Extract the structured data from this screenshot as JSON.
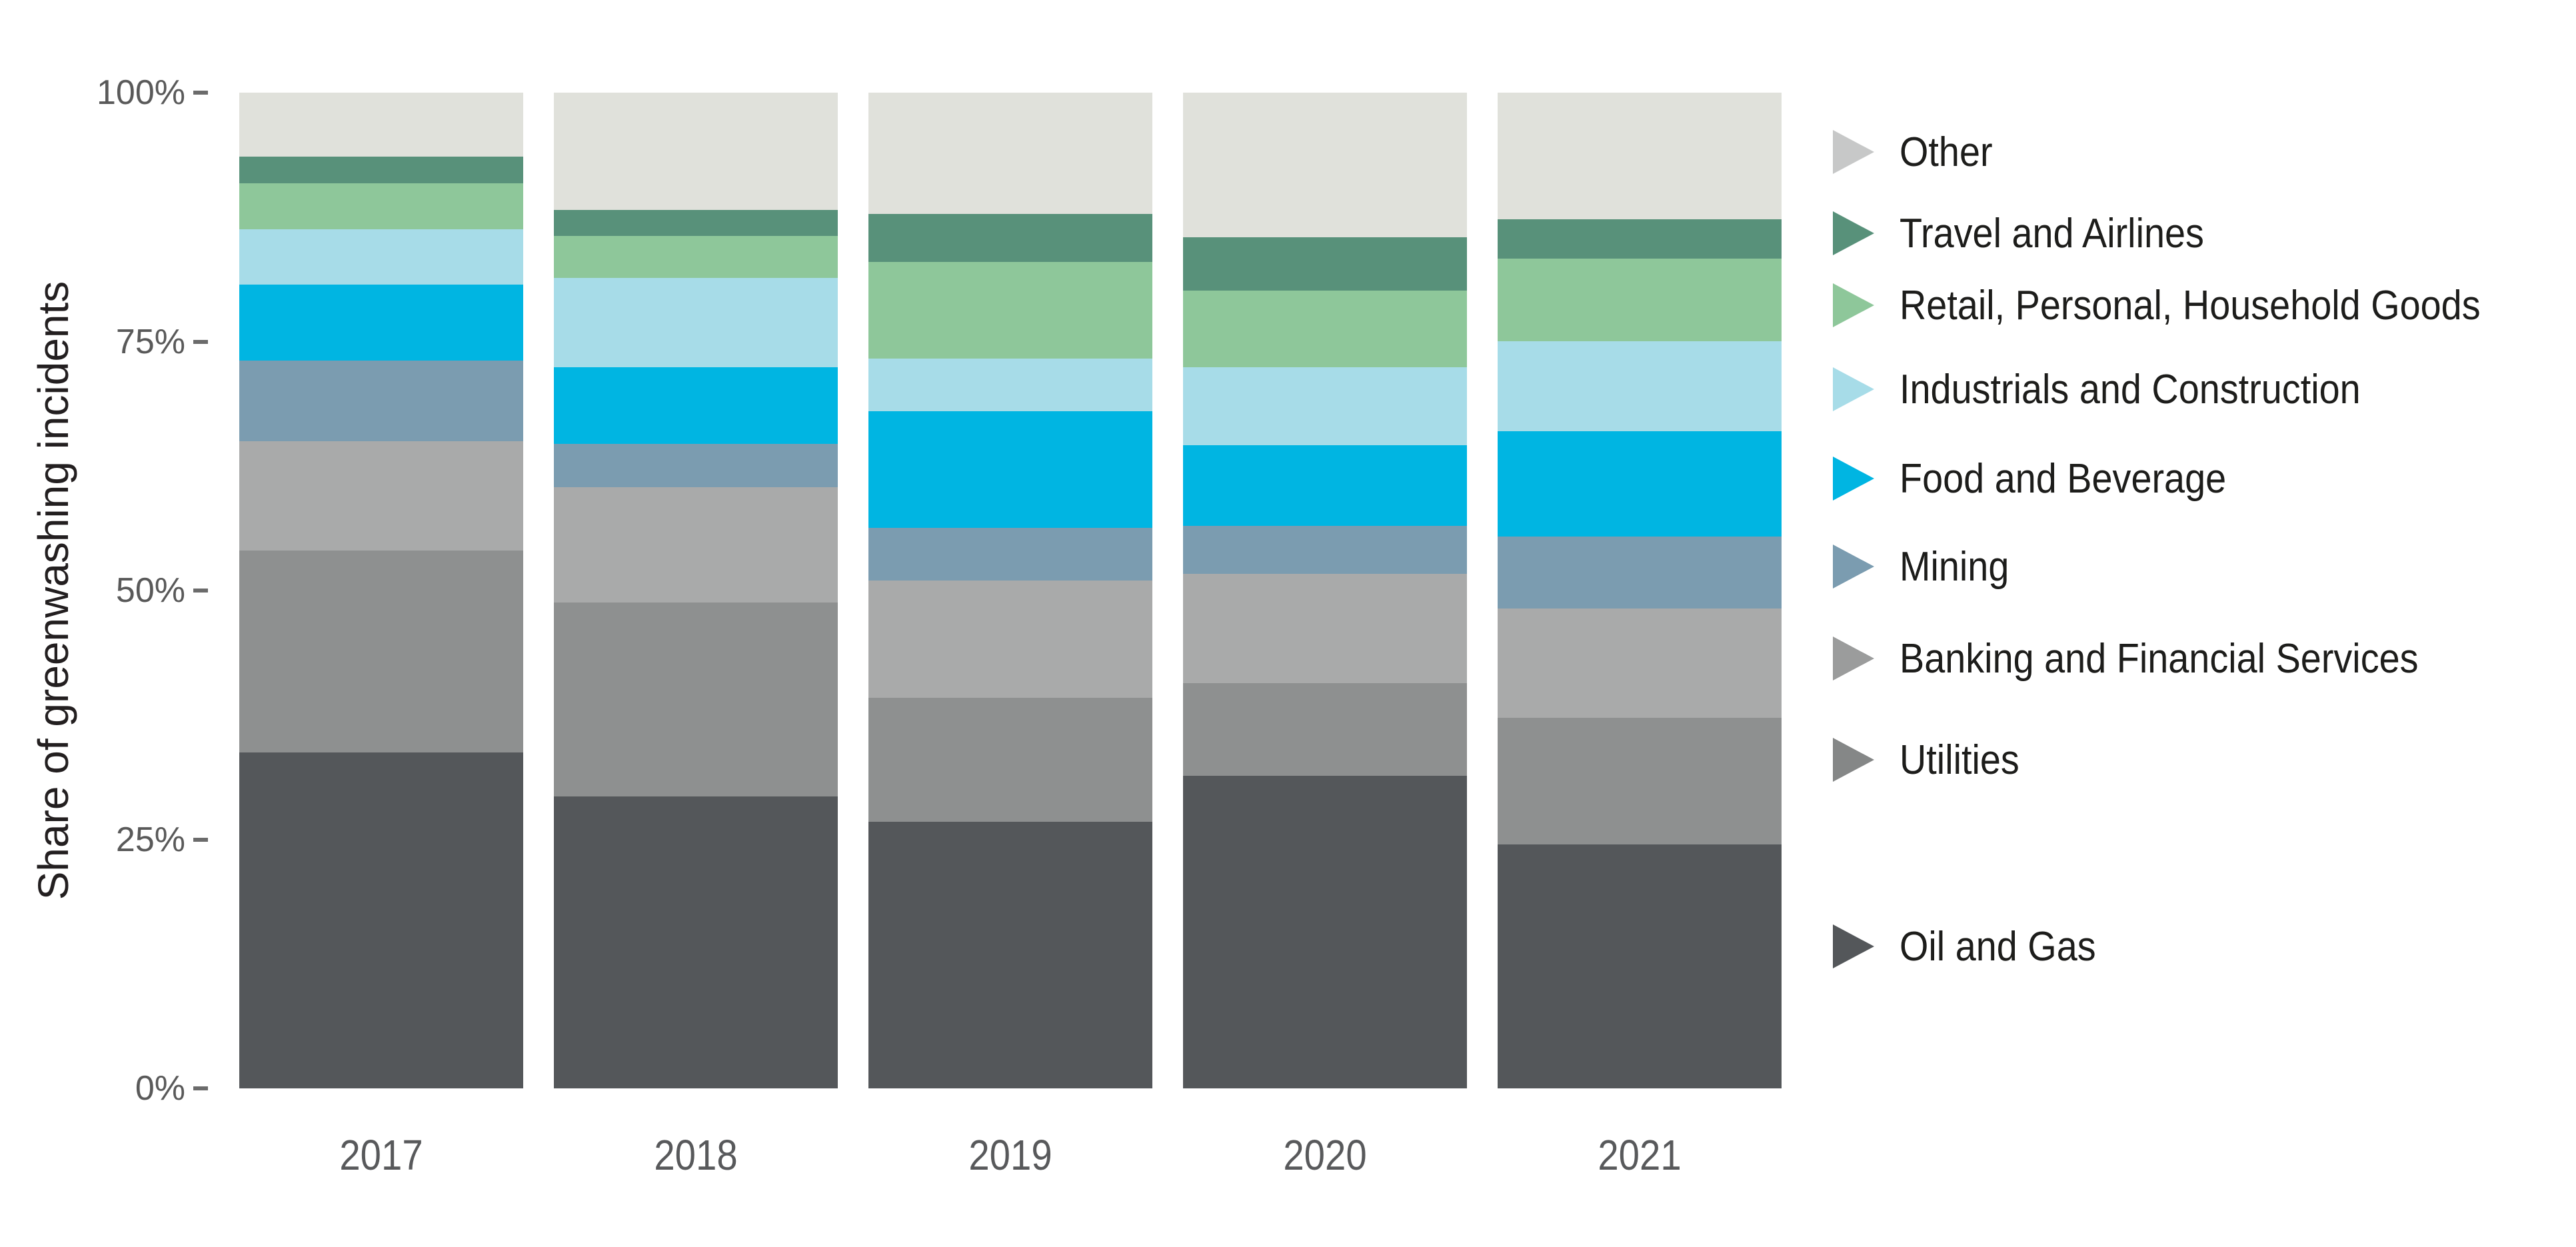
{
  "page": {
    "background": "#ffffff"
  },
  "chart_data": {
    "type": "bar",
    "variant": "stacked-100-percent",
    "title": "",
    "ylabel": "Share of greenwashing incidents",
    "xlabel": "",
    "unit": "percent",
    "grid": false,
    "legend_position": "right",
    "categories": [
      "2017",
      "2018",
      "2019",
      "2020",
      "2021"
    ],
    "y_axis": {
      "min": 0,
      "max": 100,
      "tick_values": [
        100,
        75,
        50,
        25,
        0
      ],
      "tick_labels": [
        "100%",
        "75%",
        "50%",
        "25%",
        "0%"
      ]
    },
    "series": [
      {
        "name": "Oil and Gas",
        "color": "#54575a",
        "marker_color": "#54575a",
        "values": [
          33.7,
          29.3,
          26.8,
          31.4,
          24.5
        ]
      },
      {
        "name": "Utilities",
        "color": "#8e9090",
        "marker_color": "#858787",
        "values": [
          20.3,
          19.5,
          12.4,
          9.3,
          12.7
        ]
      },
      {
        "name": "Banking and Financial Services",
        "color": "#a9aaaa",
        "marker_color": "#9b9c9c",
        "values": [
          11.0,
          11.6,
          11.8,
          11.0,
          11.0
        ]
      },
      {
        "name": "Mining",
        "color": "#7b9cb0",
        "marker_color": "#7b9cb0",
        "values": [
          8.1,
          4.3,
          5.3,
          4.8,
          7.2
        ]
      },
      {
        "name": "Food and Beverage",
        "color": "#00b5e2",
        "marker_color": "#00b5e2",
        "values": [
          7.6,
          7.7,
          11.7,
          8.1,
          10.6
        ]
      },
      {
        "name": "Industrials and Construction",
        "color": "#a7dce8",
        "marker_color": "#a7dce8",
        "values": [
          5.6,
          9.0,
          5.3,
          7.8,
          9.0
        ]
      },
      {
        "name": "Retail, Personal, Household Goods",
        "color": "#8ec79a",
        "marker_color": "#8ec79a",
        "values": [
          4.6,
          4.2,
          9.7,
          7.7,
          8.3
        ]
      },
      {
        "name": "Travel and Airlines",
        "color": "#58917a",
        "marker_color": "#58917a",
        "values": [
          2.7,
          2.6,
          4.8,
          5.4,
          4.0
        ]
      },
      {
        "name": "Other",
        "color": "#e0e1db",
        "marker_color": "#c7c8c8",
        "values": [
          6.4,
          11.8,
          12.2,
          14.5,
          12.7
        ]
      }
    ]
  },
  "colors": {
    "tick_text": "#595959",
    "tick_dash": "#6b6b6b",
    "year_text": "#58595b",
    "axis_title_text": "#231f20",
    "legend_text": "#1d1d1b",
    "background": "#ffffff"
  }
}
